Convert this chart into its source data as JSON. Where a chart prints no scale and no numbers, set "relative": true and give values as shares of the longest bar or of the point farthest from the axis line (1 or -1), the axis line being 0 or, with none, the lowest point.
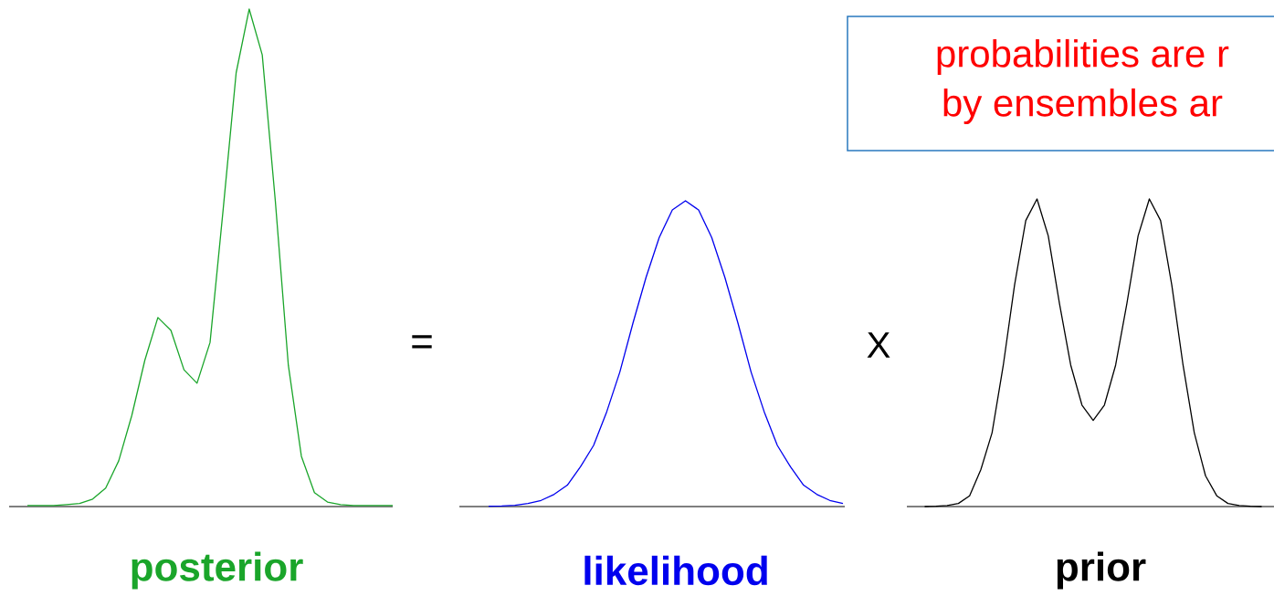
{
  "chart_data": [
    {
      "type": "line",
      "relative": true,
      "xlabel": "posterior",
      "annotations": [
        "="
      ],
      "categories": [
        null,
        null,
        null,
        null,
        null,
        null,
        null,
        null,
        null,
        null,
        null,
        null,
        null,
        null,
        null,
        null,
        null,
        null,
        null,
        null,
        null,
        null,
        null,
        null,
        null,
        null,
        null,
        null,
        null
      ],
      "series": [
        {
          "color": "#1aa52a",
          "values": [
            0.002,
            0.002,
            0.002,
            0.004,
            0.006,
            0.015,
            0.037,
            0.092,
            0.183,
            0.294,
            0.38,
            0.354,
            0.275,
            0.248,
            0.33,
            0.596,
            0.872,
            1.0,
            0.908,
            0.615,
            0.284,
            0.101,
            0.028,
            0.009,
            0.004,
            0.002,
            0.002,
            0.002,
            0.002
          ]
        }
      ]
    },
    {
      "type": "line",
      "relative": true,
      "xlabel": "likelihood",
      "annotations": [
        "X"
      ],
      "categories": [
        null,
        null,
        null,
        null,
        null,
        null,
        null,
        null,
        null,
        null,
        null,
        null,
        null,
        null,
        null,
        null,
        null,
        null,
        null,
        null,
        null,
        null,
        null,
        null,
        null,
        null,
        null,
        null
      ],
      "series": [
        {
          "color": "#0000ee",
          "values": [
            0.001,
            0.002,
            0.004,
            0.01,
            0.02,
            0.04,
            0.07,
            0.13,
            0.2,
            0.31,
            0.44,
            0.6,
            0.75,
            0.88,
            0.97,
            1.0,
            0.97,
            0.88,
            0.75,
            0.6,
            0.44,
            0.31,
            0.2,
            0.13,
            0.07,
            0.04,
            0.02,
            0.01
          ]
        }
      ]
    },
    {
      "type": "line",
      "relative": true,
      "xlabel": "prior",
      "annotations": [
        "probabilities are r",
        "by ensembles ar"
      ],
      "categories": [
        null,
        null,
        null,
        null,
        null,
        null,
        null,
        null,
        null,
        null,
        null,
        null,
        null,
        null,
        null,
        null,
        null,
        null,
        null,
        null,
        null,
        null,
        null,
        null,
        null,
        null,
        null,
        null,
        null,
        null,
        null
      ],
      "series": [
        {
          "color": "#000000",
          "values": [
            0.0,
            0.001,
            0.003,
            0.01,
            0.035,
            0.12,
            0.24,
            0.46,
            0.72,
            0.93,
            1.0,
            0.88,
            0.66,
            0.46,
            0.33,
            0.28,
            0.33,
            0.46,
            0.66,
            0.88,
            1.0,
            0.93,
            0.72,
            0.46,
            0.24,
            0.1,
            0.035,
            0.01,
            0.003,
            0.001,
            0.0
          ]
        }
      ]
    }
  ]
}
